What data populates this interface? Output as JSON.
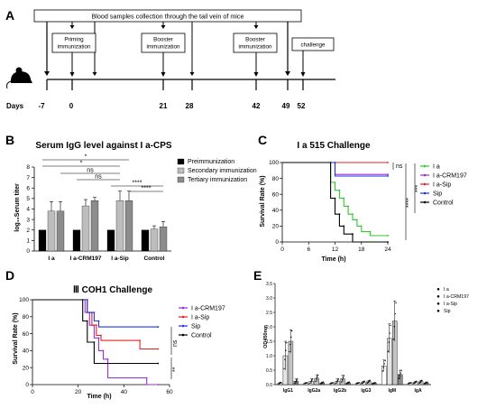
{
  "panelA": {
    "label": "A",
    "banner": "Blood samples collection through the tail vein of mice",
    "boxes": [
      "Priming\nimmunization",
      "Booster\nimmunization",
      "Booster\nimmunization",
      "challenge"
    ],
    "days_label": "Days",
    "days": [
      "-7",
      "0",
      "21",
      "28",
      "42",
      "49",
      "52"
    ]
  },
  "panelB": {
    "label": "B",
    "title": "Serum IgG level against  I a-CPS",
    "ylabel": "log₁₀Serum titer",
    "legend": [
      "Preimmunization",
      "Secondary immunization",
      "Tertiary immunization"
    ],
    "significance": [
      "*",
      "*",
      "ns",
      "ns",
      "****",
      "****"
    ],
    "colors": {
      "pre": "#000000",
      "sec": "#bdbdbd",
      "ter": "#8c8c8c"
    }
  },
  "panelC": {
    "label": "C",
    "title": "I a 515 Challenge",
    "ylabel": "Survival Rate (%)",
    "xlabel": "Time (h)",
    "legend": [
      "I a",
      "I a-CRM197",
      "I a-Sip",
      "Sip",
      "Control"
    ],
    "colors": [
      "#34c534",
      "#9b2fd6",
      "#e02424",
      "#2233e0",
      "#000000"
    ],
    "significance": [
      "ns",
      "****",
      "***"
    ]
  },
  "panelD": {
    "label": "D",
    "title": "Ⅲ COH1 Challenge",
    "ylabel": "Survival Rate (%)",
    "xlabel": "Time (h)",
    "legend": [
      "I a-CRM197",
      "I a-Sip",
      "Sip",
      "Control"
    ],
    "colors": [
      "#9b2fd6",
      "#e02424",
      "#2233e0",
      "#000000"
    ],
    "significance": [
      "ns",
      "**"
    ]
  },
  "panelE": {
    "label": "E",
    "ylabel": "OD450nm",
    "legend": [
      "I a",
      "I a-CRM197",
      "I a-Sip",
      "Sip"
    ]
  },
  "chart_data": [
    {
      "type": "bar",
      "panel": "B",
      "categories": [
        "I a",
        "I a-CRM197",
        "I a-Sip",
        "Control"
      ],
      "series": [
        {
          "name": "Preimmunization",
          "values": [
            2,
            2,
            2,
            2
          ]
        },
        {
          "name": "Secondary immunization",
          "values": [
            3.8,
            4.3,
            4.8,
            2.1
          ]
        },
        {
          "name": "Tertiary immunization",
          "values": [
            3.8,
            4.8,
            4.8,
            2.3
          ]
        }
      ],
      "errors": [
        [
          0,
          0,
          0,
          0
        ],
        [
          0.9,
          0.6,
          0.9,
          0.3
        ],
        [
          0.9,
          0.3,
          0.9,
          0.5
        ]
      ],
      "ylim": [
        0,
        8
      ],
      "yticks": [
        0,
        1,
        2,
        3,
        4,
        5,
        6,
        7,
        8
      ]
    },
    {
      "type": "line",
      "panel": "C",
      "xlim": [
        0,
        24
      ],
      "ylim": [
        0,
        100
      ],
      "xticks": [
        0,
        6,
        12,
        18,
        24
      ],
      "yticks": [
        0,
        20,
        40,
        60,
        80,
        100
      ],
      "series": [
        {
          "name": "I a",
          "steps": [
            [
              0,
              100
            ],
            [
              11,
              100
            ],
            [
              11,
              75
            ],
            [
              12,
              75
            ],
            [
              12,
              65
            ],
            [
              13,
              65
            ],
            [
              13,
              55
            ],
            [
              14,
              55
            ],
            [
              14,
              45
            ],
            [
              15,
              45
            ],
            [
              15,
              35
            ],
            [
              16,
              35
            ],
            [
              16,
              28
            ],
            [
              17,
              28
            ],
            [
              17,
              20
            ],
            [
              18,
              20
            ],
            [
              18,
              13
            ],
            [
              20,
              13
            ],
            [
              20,
              8
            ],
            [
              24,
              8
            ]
          ]
        },
        {
          "name": "I a-CRM197",
          "steps": [
            [
              0,
              100
            ],
            [
              12,
              100
            ],
            [
              12,
              85
            ],
            [
              24,
              85
            ]
          ]
        },
        {
          "name": "I a-Sip",
          "steps": [
            [
              0,
              100
            ],
            [
              24,
              100
            ]
          ]
        },
        {
          "name": "Sip",
          "steps": [
            [
              0,
              100
            ],
            [
              12,
              100
            ],
            [
              12,
              83
            ],
            [
              24,
              83
            ]
          ]
        },
        {
          "name": "Control",
          "steps": [
            [
              0,
              100
            ],
            [
              11,
              100
            ],
            [
              11,
              55
            ],
            [
              12,
              55
            ],
            [
              12,
              35
            ],
            [
              13,
              35
            ],
            [
              13,
              20
            ],
            [
              14,
              20
            ],
            [
              14,
              10
            ],
            [
              16,
              10
            ],
            [
              16,
              0
            ],
            [
              24,
              0
            ]
          ]
        }
      ]
    },
    {
      "type": "line",
      "panel": "D",
      "xlim": [
        0,
        60
      ],
      "ylim": [
        0,
        100
      ],
      "xticks": [
        0,
        20,
        40,
        60
      ],
      "yticks": [
        0,
        20,
        40,
        60,
        80,
        100
      ],
      "series": [
        {
          "name": "I a-CRM197",
          "steps": [
            [
              0,
              100
            ],
            [
              23,
              100
            ],
            [
              23,
              85
            ],
            [
              25,
              85
            ],
            [
              25,
              70
            ],
            [
              27,
              70
            ],
            [
              27,
              55
            ],
            [
              29,
              55
            ],
            [
              29,
              40
            ],
            [
              31,
              40
            ],
            [
              31,
              30
            ],
            [
              33,
              30
            ],
            [
              33,
              8
            ],
            [
              50,
              8
            ],
            [
              50,
              0
            ],
            [
              55,
              0
            ]
          ]
        },
        {
          "name": "I a-Sip",
          "steps": [
            [
              0,
              100
            ],
            [
              24,
              100
            ],
            [
              24,
              85
            ],
            [
              26,
              85
            ],
            [
              26,
              70
            ],
            [
              28,
              70
            ],
            [
              28,
              58
            ],
            [
              30,
              58
            ],
            [
              30,
              52
            ],
            [
              47,
              52
            ],
            [
              47,
              42
            ],
            [
              55,
              42
            ]
          ]
        },
        {
          "name": "Sip",
          "steps": [
            [
              0,
              100
            ],
            [
              24,
              100
            ],
            [
              24,
              85
            ],
            [
              27,
              85
            ],
            [
              27,
              75
            ],
            [
              29,
              75
            ],
            [
              29,
              68
            ],
            [
              55,
              68
            ]
          ]
        },
        {
          "name": "Control",
          "steps": [
            [
              0,
              100
            ],
            [
              22,
              100
            ],
            [
              22,
              75
            ],
            [
              24,
              75
            ],
            [
              24,
              50
            ],
            [
              27,
              50
            ],
            [
              27,
              25
            ],
            [
              55,
              25
            ]
          ]
        }
      ]
    },
    {
      "type": "bar",
      "panel": "E",
      "categories": [
        "IgG1",
        "IgG2a",
        "IgG2b",
        "IgG3",
        "IgM",
        "IgA"
      ],
      "series": [
        {
          "name": "I a",
          "values": [
            0.05,
            0.05,
            0.05,
            0.05,
            0.65,
            0.05
          ]
        },
        {
          "name": "I a-CRM197",
          "values": [
            1.0,
            0.12,
            0.12,
            0.08,
            1.6,
            0.08
          ]
        },
        {
          "name": "I a-Sip",
          "values": [
            1.5,
            0.22,
            0.2,
            0.1,
            2.2,
            0.1
          ]
        },
        {
          "name": "Sip",
          "values": [
            0.12,
            0.06,
            0.06,
            0.05,
            0.35,
            0.06
          ]
        }
      ],
      "errors": [
        [
          0.03,
          0.02,
          0.02,
          0.02,
          0.2,
          0.02
        ],
        [
          0.5,
          0.08,
          0.08,
          0.04,
          0.5,
          0.04
        ],
        [
          0.4,
          0.12,
          0.12,
          0.05,
          0.7,
          0.05
        ],
        [
          0.08,
          0.03,
          0.03,
          0.02,
          0.15,
          0.03
        ]
      ],
      "ylim": [
        0,
        3.5
      ],
      "yticks": [
        "0.0",
        "0.5",
        "1.0",
        "1.5",
        "2.0",
        "2.5",
        "3.0",
        "3.5"
      ]
    }
  ]
}
